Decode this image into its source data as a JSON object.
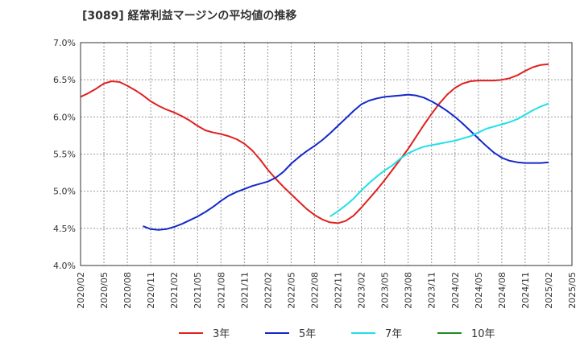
{
  "chart_data": {
    "type": "line",
    "title": "[3089]  経常利益マージンの平均値の推移",
    "xlabel": "",
    "ylabel": "",
    "ylim": [
      4.0,
      7.0
    ],
    "yticks": [
      4.0,
      4.5,
      5.0,
      5.5,
      6.0,
      6.5,
      7.0
    ],
    "ytick_labels": [
      "4.0%",
      "4.5%",
      "5.0%",
      "5.5%",
      "6.0%",
      "6.5%",
      "7.0%"
    ],
    "xlim": [
      "2020/02",
      "2025/05"
    ],
    "xtick_labels": [
      "2020/02",
      "2020/05",
      "2020/08",
      "2020/11",
      "2021/02",
      "2021/05",
      "2021/08",
      "2021/11",
      "2022/02",
      "2022/05",
      "2022/08",
      "2022/11",
      "2023/02",
      "2023/05",
      "2023/08",
      "2023/11",
      "2024/02",
      "2024/05",
      "2024/08",
      "2024/11",
      "2025/02",
      "2025/05"
    ],
    "grid": true,
    "legend": "bottom",
    "series": [
      {
        "name": "3年",
        "color": "#e02020",
        "x": [
          "2020/02",
          "2020/03",
          "2020/04",
          "2020/05",
          "2020/06",
          "2020/07",
          "2020/08",
          "2020/09",
          "2020/10",
          "2020/11",
          "2020/12",
          "2021/01",
          "2021/02",
          "2021/03",
          "2021/04",
          "2021/05",
          "2021/06",
          "2021/07",
          "2021/08",
          "2021/09",
          "2021/10",
          "2021/11",
          "2021/12",
          "2022/01",
          "2022/02",
          "2022/03",
          "2022/04",
          "2022/05",
          "2022/06",
          "2022/07",
          "2022/08",
          "2022/09",
          "2022/10",
          "2022/11",
          "2022/12",
          "2023/01",
          "2023/02",
          "2023/03",
          "2023/04",
          "2023/05",
          "2023/06",
          "2023/07",
          "2023/08",
          "2023/09",
          "2023/10",
          "2023/11",
          "2023/12",
          "2024/01",
          "2024/02",
          "2024/03",
          "2024/04",
          "2024/05",
          "2024/06",
          "2024/07",
          "2024/08",
          "2024/09",
          "2024/10",
          "2024/11",
          "2024/12",
          "2025/01",
          "2025/02"
        ],
        "values": [
          6.27,
          6.32,
          6.38,
          6.45,
          6.48,
          6.47,
          6.42,
          6.36,
          6.29,
          6.21,
          6.15,
          6.1,
          6.06,
          6.01,
          5.95,
          5.88,
          5.82,
          5.79,
          5.77,
          5.74,
          5.7,
          5.64,
          5.55,
          5.43,
          5.29,
          5.17,
          5.06,
          4.96,
          4.86,
          4.76,
          4.68,
          4.62,
          4.58,
          4.57,
          4.6,
          4.67,
          4.78,
          4.9,
          5.02,
          5.15,
          5.29,
          5.43,
          5.57,
          5.73,
          5.89,
          6.04,
          6.18,
          6.3,
          6.39,
          6.45,
          6.48,
          6.49,
          6.49,
          6.49,
          6.5,
          6.52,
          6.56,
          6.62,
          6.67,
          6.7,
          6.71
        ]
      },
      {
        "name": "5年",
        "color": "#1428c8",
        "x": [
          "2020/10",
          "2020/11",
          "2020/12",
          "2021/01",
          "2021/02",
          "2021/03",
          "2021/04",
          "2021/05",
          "2021/06",
          "2021/07",
          "2021/08",
          "2021/09",
          "2021/10",
          "2021/11",
          "2021/12",
          "2022/01",
          "2022/02",
          "2022/03",
          "2022/04",
          "2022/05",
          "2022/06",
          "2022/07",
          "2022/08",
          "2022/09",
          "2022/10",
          "2022/11",
          "2022/12",
          "2023/01",
          "2023/02",
          "2023/03",
          "2023/04",
          "2023/05",
          "2023/06",
          "2023/07",
          "2023/08",
          "2023/09",
          "2023/10",
          "2023/11",
          "2023/12",
          "2024/01",
          "2024/02",
          "2024/03",
          "2024/04",
          "2024/05",
          "2024/06",
          "2024/07",
          "2024/08",
          "2024/09",
          "2024/10",
          "2024/11",
          "2024/12",
          "2025/01",
          "2025/02"
        ],
        "values": [
          4.53,
          4.49,
          4.48,
          4.49,
          4.52,
          4.56,
          4.61,
          4.66,
          4.72,
          4.79,
          4.87,
          4.94,
          4.99,
          5.03,
          5.07,
          5.1,
          5.13,
          5.18,
          5.26,
          5.37,
          5.46,
          5.54,
          5.61,
          5.69,
          5.78,
          5.88,
          5.98,
          6.08,
          6.17,
          6.22,
          6.25,
          6.27,
          6.28,
          6.29,
          6.3,
          6.29,
          6.26,
          6.21,
          6.15,
          6.08,
          6.0,
          5.91,
          5.81,
          5.71,
          5.61,
          5.52,
          5.45,
          5.41,
          5.39,
          5.38,
          5.38,
          5.38,
          5.39
        ]
      },
      {
        "name": "7年",
        "color": "#20e0e8",
        "x": [
          "2022/10",
          "2022/11",
          "2022/12",
          "2023/01",
          "2023/02",
          "2023/03",
          "2023/04",
          "2023/05",
          "2023/06",
          "2023/07",
          "2023/08",
          "2023/09",
          "2023/10",
          "2023/11",
          "2023/12",
          "2024/01",
          "2024/02",
          "2024/03",
          "2024/04",
          "2024/05",
          "2024/06",
          "2024/07",
          "2024/08",
          "2024/09",
          "2024/10",
          "2024/11",
          "2024/12",
          "2025/01",
          "2025/02"
        ],
        "values": [
          4.66,
          4.73,
          4.81,
          4.9,
          5.01,
          5.11,
          5.2,
          5.28,
          5.35,
          5.44,
          5.51,
          5.56,
          5.6,
          5.62,
          5.64,
          5.66,
          5.68,
          5.71,
          5.74,
          5.79,
          5.84,
          5.87,
          5.9,
          5.93,
          5.97,
          6.03,
          6.09,
          6.14,
          6.18
        ]
      },
      {
        "name": "10年",
        "color": "#208c20",
        "x": [],
        "values": []
      }
    ]
  }
}
